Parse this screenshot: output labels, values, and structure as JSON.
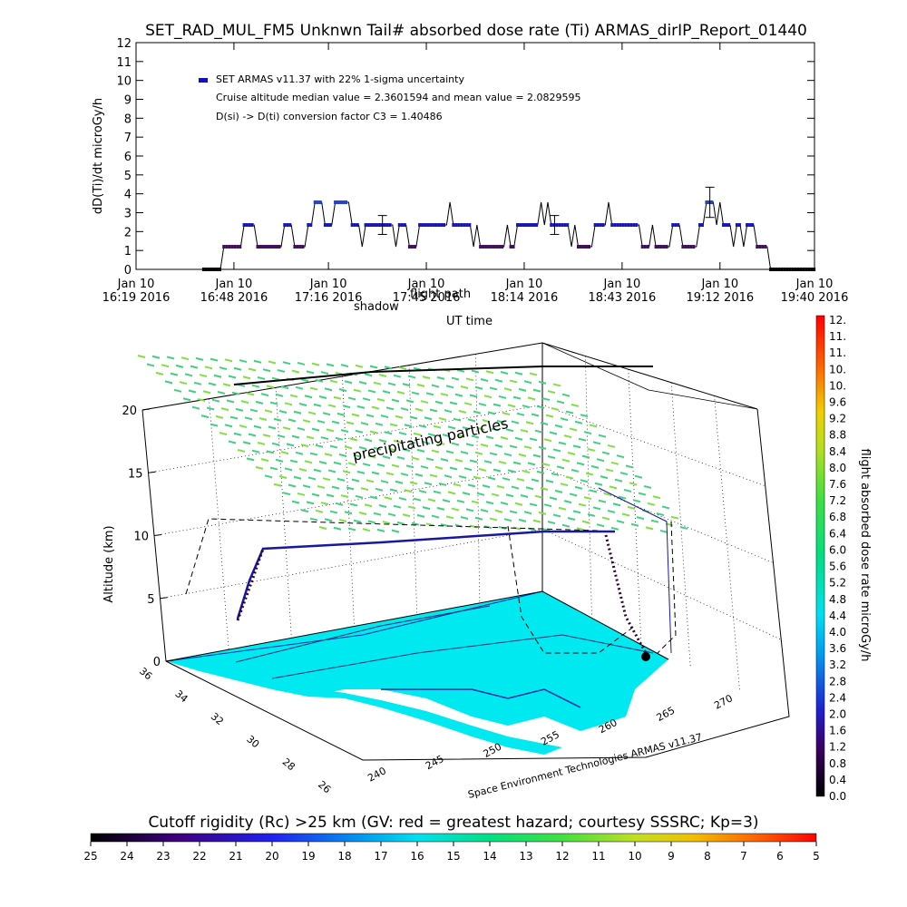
{
  "top_chart": {
    "title": "SET_RAD_MUL_FM5 Unknwn Tail#  absorbed dose rate (Ti) ARMAS_dirIP_Report_01440",
    "ylabel": "dD(Ti)/dt microGy/h",
    "xlabel": "UT time",
    "legend": {
      "series": "SET ARMAS v11.37 with 22% 1-sigma uncertainty",
      "line2": "Cruise altitude median value = 2.3601594 and mean value = 2.0829595",
      "line3": "D(si) -> D(ti) conversion factor C3 = 1.40486",
      "marker_color": "#1010c0"
    }
  },
  "chart_data": [
    {
      "type": "line",
      "title": "SET_RAD_MUL_FM5 Unknwn Tail#  absorbed dose rate (Ti) ARMAS_dirIP_Report_01440",
      "xlabel": "UT time",
      "ylabel": "dD(Ti)/dt microGy/h",
      "ylim": [
        0,
        12
      ],
      "xlim": [
        "2016-01-10 16:19",
        "2016-01-10 19:40"
      ],
      "x_ticks": [
        "Jan 10 16:19 2016",
        "Jan 10 16:48 2016",
        "Jan 10 17:16 2016",
        "Jan 10 17:45 2016",
        "Jan 10 18:14 2016",
        "Jan 10 18:43 2016",
        "Jan 10 19:12 2016",
        "Jan 10 19:40 2016"
      ],
      "y_ticks": [
        0,
        1,
        2,
        3,
        4,
        5,
        6,
        7,
        8,
        9,
        10,
        11,
        12
      ],
      "series": [
        {
          "name": "SET ARMAS v11.37 with 22% 1-sigma uncertainty",
          "points": [
            [
              "16:39",
              0
            ],
            [
              "16:44",
              0
            ],
            [
              "16:45",
              1.2
            ],
            [
              "16:50",
              1.2
            ],
            [
              "16:51",
              2.35
            ],
            [
              "16:54",
              2.35
            ],
            [
              "16:55",
              1.2
            ],
            [
              "17:02",
              1.2
            ],
            [
              "17:03",
              2.35
            ],
            [
              "17:05",
              2.35
            ],
            [
              "17:06",
              1.2
            ],
            [
              "17:09",
              1.2
            ],
            [
              "17:10",
              2.35
            ],
            [
              "17:11",
              2.35
            ],
            [
              "17:12",
              3.55
            ],
            [
              "17:14",
              3.55
            ],
            [
              "17:15",
              2.35
            ],
            [
              "17:17",
              2.35
            ],
            [
              "17:18",
              3.55
            ],
            [
              "17:22",
              3.55
            ],
            [
              "17:23",
              2.35
            ],
            [
              "17:25",
              2.35
            ],
            [
              "17:26",
              1.2
            ],
            [
              "17:27",
              2.35
            ],
            [
              "17:35",
              2.35
            ],
            [
              "17:36",
              1.2
            ],
            [
              "17:37",
              2.35
            ],
            [
              "17:39",
              2.35
            ],
            [
              "17:40",
              1.2
            ],
            [
              "17:42",
              1.2
            ],
            [
              "17:43",
              2.35
            ],
            [
              "17:51",
              2.35
            ],
            [
              "17:52",
              3.55
            ],
            [
              "17:53",
              2.35
            ],
            [
              "17:58",
              2.35
            ],
            [
              "17:59",
              1.2
            ],
            [
              "18:00",
              2.35
            ],
            [
              "18:01",
              1.2
            ],
            [
              "18:08",
              1.2
            ],
            [
              "18:09",
              2.35
            ],
            [
              "18:10",
              1.2
            ],
            [
              "18:11",
              1.2
            ],
            [
              "18:12",
              2.35
            ],
            [
              "18:18",
              2.35
            ],
            [
              "18:19",
              3.55
            ],
            [
              "18:20",
              2.35
            ],
            [
              "18:21",
              3.55
            ],
            [
              "18:22",
              2.35
            ],
            [
              "18:27",
              2.35
            ],
            [
              "18:28",
              1.2
            ],
            [
              "18:29",
              2.35
            ],
            [
              "18:30",
              1.2
            ],
            [
              "18:34",
              1.2
            ],
            [
              "18:35",
              2.35
            ],
            [
              "18:38",
              2.35
            ],
            [
              "18:39",
              3.55
            ],
            [
              "18:40",
              2.35
            ],
            [
              "18:48",
              2.35
            ],
            [
              "18:49",
              1.2
            ],
            [
              "18:51",
              1.2
            ],
            [
              "18:52",
              2.35
            ],
            [
              "18:53",
              1.2
            ],
            [
              "18:57",
              1.2
            ],
            [
              "18:58",
              2.35
            ],
            [
              "19:00",
              2.35
            ],
            [
              "19:01",
              1.2
            ],
            [
              "19:05",
              1.2
            ],
            [
              "19:06",
              2.35
            ],
            [
              "19:07",
              2.35
            ],
            [
              "19:08",
              3.55
            ],
            [
              "19:10",
              3.55
            ],
            [
              "19:11",
              2.35
            ],
            [
              "19:12",
              3.55
            ],
            [
              "19:13",
              2.35
            ],
            [
              "19:15",
              2.35
            ],
            [
              "19:16",
              1.2
            ],
            [
              "19:17",
              2.35
            ],
            [
              "19:18",
              2.35
            ],
            [
              "19:19",
              1.2
            ],
            [
              "19:20",
              2.35
            ],
            [
              "19:22",
              2.35
            ],
            [
              "19:23",
              1.2
            ],
            [
              "19:26",
              1.2
            ],
            [
              "19:27",
              0
            ],
            [
              "19:40",
              0
            ]
          ]
        }
      ],
      "error_bars": [
        {
          "x": "17:32",
          "y": 2.35,
          "low": 1.85,
          "high": 2.85
        },
        {
          "x": "18:23",
          "y": 2.35,
          "low": 1.85,
          "high": 2.85
        },
        {
          "x": "19:09",
          "y": 3.55,
          "low": 2.75,
          "high": 4.35
        }
      ]
    },
    {
      "type": "scatter",
      "title": "",
      "zlabel": "Altitude (km)",
      "z_ticks": [
        0,
        5,
        10,
        15,
        20
      ],
      "lat_ticks": [
        36,
        34,
        32,
        30,
        28,
        26
      ],
      "lon_ticks": [
        240,
        245,
        250,
        255,
        260,
        265,
        270
      ],
      "annotations": [
        "shadow",
        "flight path",
        "precipitating particles"
      ],
      "footer": "Space Environment Technologies ARMAS v11.37"
    }
  ],
  "colorbar_right": {
    "label": "flight absorbed dose rate microGy/h",
    "ticks": [
      "0.0",
      "0.4",
      "0.8",
      "1.2",
      "1.6",
      "2.0",
      "2.4",
      "2.8",
      "3.2",
      "3.6",
      "4.0",
      "4.4",
      "4.8",
      "5.2",
      "5.6",
      "6.0",
      "6.4",
      "6.8",
      "7.2",
      "7.6",
      "8.0",
      "8.4",
      "8.8",
      "9.2",
      "9.6",
      "10.",
      "10.",
      "11.",
      "11.",
      "12."
    ]
  },
  "colorbar_bottom": {
    "title": "Cutoff rigidity (Rc) >25 km (GV: red = greatest hazard; courtesy SSSRC; Kp=3)",
    "ticks": [
      "25",
      "24",
      "23",
      "22",
      "21",
      "20",
      "19",
      "18",
      "17",
      "16",
      "15",
      "14",
      "13",
      "12",
      "11",
      "10",
      "9",
      "8",
      "7",
      "6",
      "5"
    ]
  }
}
